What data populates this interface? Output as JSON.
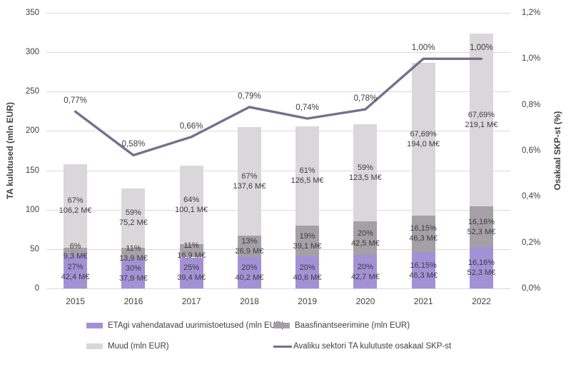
{
  "chart_data": {
    "type": "bar",
    "subtype": "stacked-bar-with-line-combo",
    "categories": [
      "2015",
      "2016",
      "2017",
      "2018",
      "2019",
      "2020",
      "2021",
      "2022"
    ],
    "bar_series": [
      {
        "name": "ETAgi vahendatavad uurimistoetused (mln EUR)",
        "color": "#a391d6",
        "values": [
          42.4,
          37.9,
          39.4,
          40.2,
          40.6,
          42.7,
          46.3,
          52.3
        ],
        "labels": [
          [
            "27%",
            "42,4 M€"
          ],
          [
            "30%",
            "37,9 M€"
          ],
          [
            "25%",
            "39,4 M€"
          ],
          [
            "20%",
            "40,2 M€"
          ],
          [
            "20%",
            "40,6 M€"
          ],
          [
            "20%",
            "42,7 M€"
          ],
          [
            "16,15%",
            "46,3 M€"
          ],
          [
            "16,16%",
            "52,3 M€"
          ]
        ]
      },
      {
        "name": "Baasfinantseerimine (mln EUR)",
        "color": "#a5a0a5",
        "values": [
          9.3,
          13.9,
          16.9,
          26.9,
          39.1,
          42.5,
          46.3,
          52.3
        ],
        "labels": [
          [
            "6%",
            "9,3 M€"
          ],
          [
            "11%",
            "13,9 M€"
          ],
          [
            "11%",
            "16,9 M€"
          ],
          [
            "13%",
            "26,9 M€"
          ],
          [
            "19%",
            "39,1 M€"
          ],
          [
            "20%",
            "42,5 M€"
          ],
          [
            "16,15%",
            "46,3 M€"
          ],
          [
            "16,16%",
            "52,3 M€"
          ]
        ]
      },
      {
        "name": "Muud (mln EUR)",
        "color": "#dad7da",
        "values": [
          106.2,
          75.2,
          100.1,
          137.6,
          126.5,
          123.5,
          194.0,
          219.1
        ],
        "labels": [
          [
            "67%",
            "106,2 M€"
          ],
          [
            "59%",
            "75,2 M€"
          ],
          [
            "64%",
            "100,1 M€"
          ],
          [
            "67%",
            "137,6 M€"
          ],
          [
            "61%",
            "126,5 M€"
          ],
          [
            "59%",
            "123,5 M€"
          ],
          [
            "67,69%",
            "194,0 M€"
          ],
          [
            "67,69%",
            "219,1 M€"
          ]
        ]
      }
    ],
    "line_series": {
      "name": "Avaliku sektori TA kulutuste osakaal SKP-st",
      "color": "#74708f",
      "axis": "right",
      "values": [
        0.77,
        0.58,
        0.66,
        0.79,
        0.74,
        0.78,
        1.0,
        1.0
      ],
      "labels": [
        "0,77%",
        "0,58%",
        "0,66%",
        "0,79%",
        "0,74%",
        "0,78%",
        "1,00%",
        "1,00%"
      ]
    },
    "left_axis": {
      "title": "TA kulutused (mln EUR)",
      "min": 0,
      "max": 350,
      "step": 50,
      "tick_labels": [
        "0",
        "50",
        "100",
        "150",
        "200",
        "250",
        "300",
        "350"
      ]
    },
    "right_axis": {
      "title": "Osakaal SKP-st (%)",
      "min": 0,
      "max": 1.2,
      "step": 0.2,
      "tick_labels": [
        "0,0%",
        "0,2%",
        "0,4%",
        "0,6%",
        "0,8%",
        "1,0%",
        "1,2%"
      ]
    },
    "grid": "horizontal",
    "gridline_color": "#d9d9d9",
    "legend_position": "bottom",
    "legend": [
      {
        "swatch": "bar",
        "color": "#a391d6",
        "label": "ETAgi vahendatavad uurimistoetused (mln EUR)"
      },
      {
        "swatch": "bar",
        "color": "#a5a0a5",
        "label": "Baasfinantseerimine (mln EUR)"
      },
      {
        "swatch": "bar",
        "color": "#dad7da",
        "label": "Muud (mln EUR)"
      },
      {
        "swatch": "line",
        "color": "#74708f",
        "label": "Avaliku sektori TA kulutuste osakaal SKP-st"
      }
    ]
  }
}
